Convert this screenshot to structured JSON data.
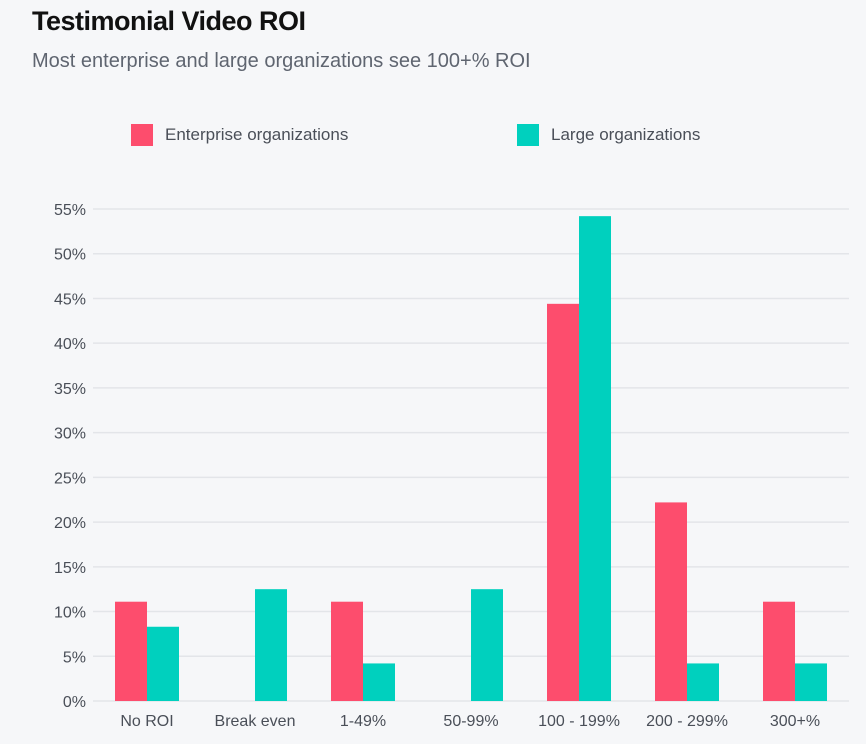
{
  "chart_data": {
    "type": "bar",
    "title": "Testimonial Video ROI",
    "subtitle": "Most enterprise and large organizations see 100+% ROI",
    "categories": [
      "No ROI",
      "Break even",
      "1-49%",
      "50-99%",
      "100 - 199%",
      "200 - 299%",
      "300+%"
    ],
    "series": [
      {
        "name": "Enterprise organizations",
        "color": "#fd4d6d",
        "values": [
          11.1,
          0,
          11.1,
          0,
          44.4,
          22.2,
          11.1
        ]
      },
      {
        "name": "Large organizations",
        "color": "#00d0be",
        "values": [
          8.3,
          12.5,
          4.2,
          12.5,
          54.2,
          4.2,
          4.2
        ]
      }
    ],
    "ylim": [
      0,
      55
    ],
    "yticks": [
      0,
      5,
      10,
      15,
      20,
      25,
      30,
      35,
      40,
      45,
      50,
      55
    ],
    "ytick_format": "%",
    "grid": true,
    "legend": "top"
  }
}
